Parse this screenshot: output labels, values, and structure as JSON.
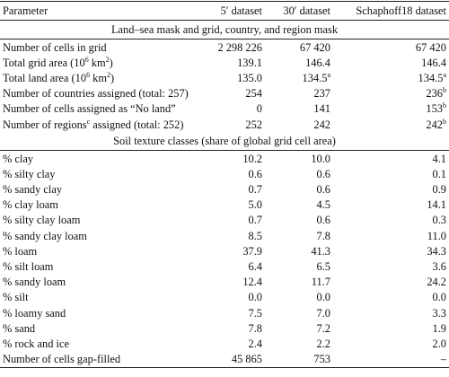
{
  "header": [
    "Parameter",
    "5′ dataset",
    "30′ dataset",
    "Schaphoff18 dataset"
  ],
  "sections": [
    {
      "title": "Land–sea mask and grid, country, and region mask",
      "rows": [
        [
          "Number of cells in grid",
          "2 298 226",
          "67 420",
          "67 420"
        ],
        [
          [
            {
              "t": "Total grid area (10"
            },
            {
              "t": "6",
              "sup": true
            },
            {
              "t": " km"
            },
            {
              "t": "2",
              "sup": true
            },
            {
              "t": ")"
            }
          ],
          "139.1",
          "146.4",
          "146.4"
        ],
        [
          [
            {
              "t": "Total land area (10"
            },
            {
              "t": "6",
              "sup": true
            },
            {
              "t": " km"
            },
            {
              "t": "2",
              "sup": true
            },
            {
              "t": ")"
            }
          ],
          "135.0",
          [
            {
              "t": "134.5"
            },
            {
              "t": "a",
              "sup": true
            }
          ],
          [
            {
              "t": "134.5"
            },
            {
              "t": "a",
              "sup": true
            }
          ]
        ],
        [
          "Number of countries assigned (total: 257)",
          "254",
          "237",
          [
            {
              "t": "236"
            },
            {
              "t": "b",
              "sup": true
            }
          ]
        ],
        [
          "Number of cells assigned as “No land”",
          "0",
          "141",
          [
            {
              "t": "153"
            },
            {
              "t": "b",
              "sup": true
            }
          ]
        ],
        [
          [
            {
              "t": "Number of regions"
            },
            {
              "t": "c",
              "sup": true
            },
            {
              "t": " assigned (total: 252)"
            }
          ],
          "252",
          "242",
          [
            {
              "t": "242"
            },
            {
              "t": "b",
              "sup": true
            }
          ]
        ]
      ]
    },
    {
      "title": "Soil texture classes (share of global grid cell area)",
      "rows": [
        [
          "% clay",
          "10.2",
          "10.0",
          "4.1"
        ],
        [
          "% silty clay",
          "0.6",
          "0.6",
          "0.1"
        ],
        [
          "% sandy clay",
          "0.7",
          "0.6",
          "0.9"
        ],
        [
          "% clay loam",
          "5.0",
          "4.5",
          "14.1"
        ],
        [
          "% silty clay loam",
          "0.7",
          "0.6",
          "0.3"
        ],
        [
          "% sandy clay loam",
          "8.5",
          "7.8",
          "11.0"
        ],
        [
          "% loam",
          "37.9",
          "41.3",
          "34.3"
        ],
        [
          "% silt loam",
          "6.4",
          "6.5",
          "3.6"
        ],
        [
          "% sandy loam",
          "12.4",
          "11.7",
          "24.2"
        ],
        [
          "% silt",
          "0.0",
          "0.0",
          "0.0"
        ],
        [
          "% loamy sand",
          "7.5",
          "7.0",
          "3.3"
        ],
        [
          "% sand",
          "7.8",
          "7.2",
          "1.9"
        ],
        [
          "% rock and ice",
          "2.4",
          "2.2",
          "2.0"
        ],
        [
          "Number of cells gap-filled",
          "45 865",
          "753",
          "–"
        ]
      ]
    }
  ]
}
